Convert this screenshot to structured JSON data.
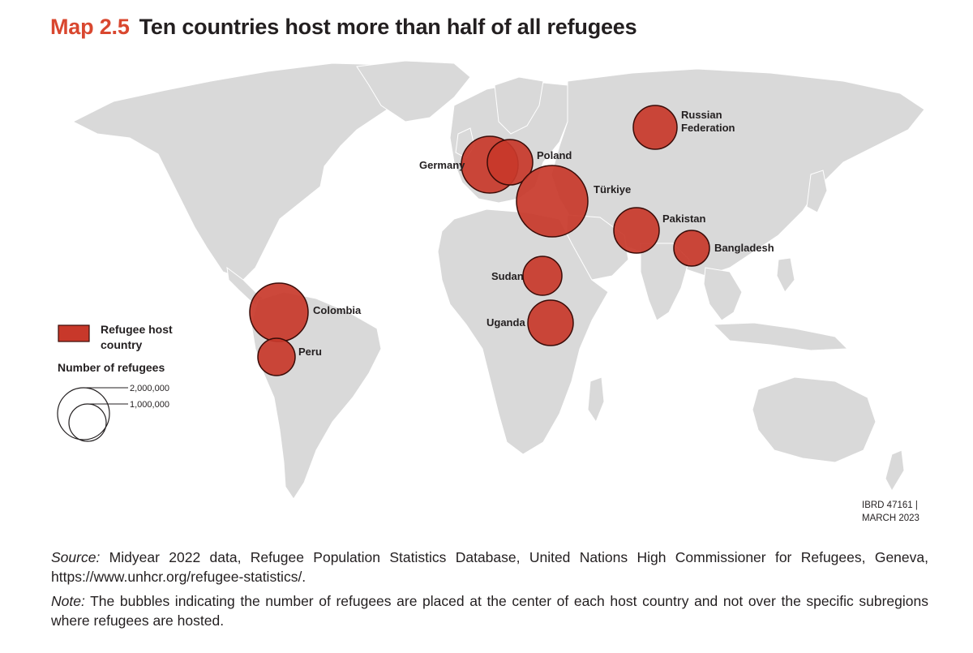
{
  "title": {
    "number": "Map 2.5",
    "text": "Ten countries host more than half of all refugees"
  },
  "colors": {
    "bubble_fill": "#c8382a",
    "bubble_stroke": "#4a0f0a",
    "land": "#d9d9d9",
    "title_accent": "#d9472f"
  },
  "legend": {
    "swatch_label_line1": "Refugee host",
    "swatch_label_line2": "country",
    "size_title": "Number of refugees",
    "size_large": "2,000,000",
    "size_small": "1,000,000"
  },
  "countries": [
    {
      "name": "Russian",
      "name2": "Federation"
    },
    {
      "name": "Germany"
    },
    {
      "name": "Poland"
    },
    {
      "name": "Türkiye"
    },
    {
      "name": "Pakistan"
    },
    {
      "name": "Bangladesh"
    },
    {
      "name": "Sudan"
    },
    {
      "name": "Uganda"
    },
    {
      "name": "Colombia"
    },
    {
      "name": "Peru"
    }
  ],
  "map_id": {
    "line1": "IBRD 47161 |",
    "line2": "MARCH 2023"
  },
  "source": {
    "label": "Source:",
    "text": " Midyear 2022 data, Refugee Population Statistics Database, United Nations High Commissioner for Refugees, Geneva, https://www.unhcr.org/refugee-statistics/."
  },
  "note": {
    "label": "Note:",
    "text": " The bubbles indicating the number of refugees are placed at the center of each host country and not over the specific subregions where refugees are hosted."
  }
}
